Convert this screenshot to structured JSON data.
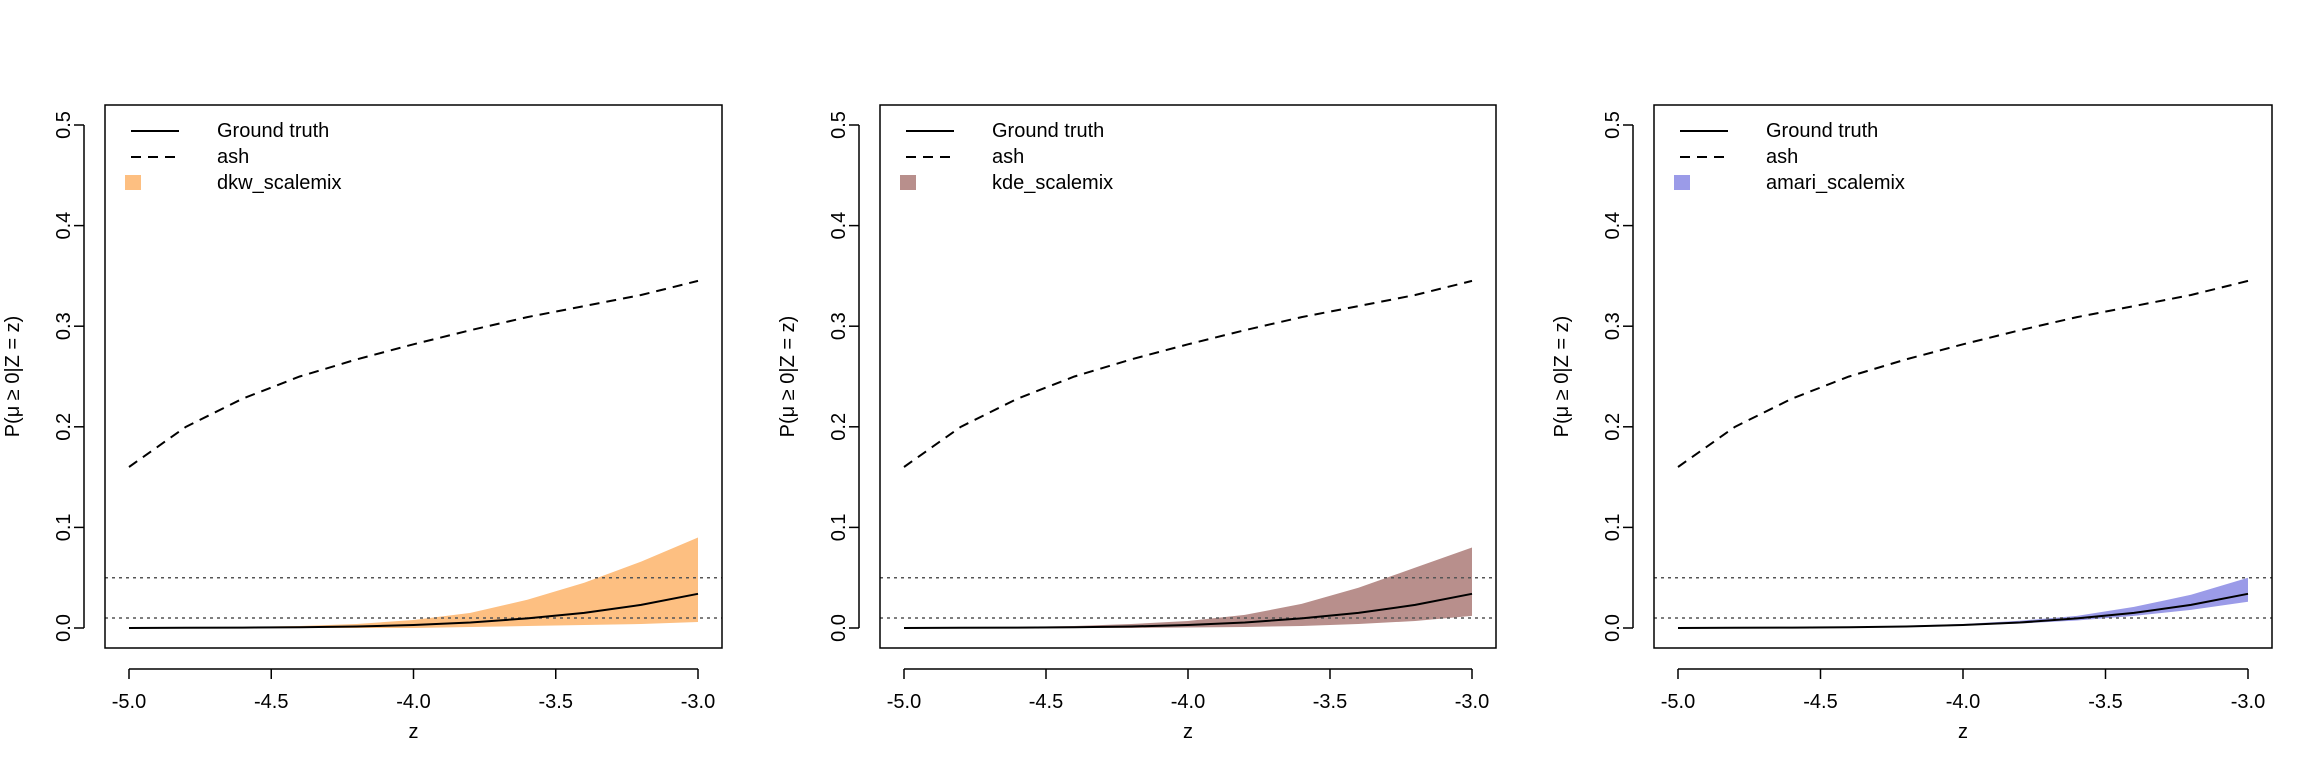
{
  "figure": {
    "y_axis_label": "P(μ ≥ 0|Z = z)",
    "x_axis_label": "z"
  },
  "chart_data": [
    {
      "type": "line",
      "xlabel": "z",
      "ylabel": "P(μ ≥ 0|Z = z)",
      "xlim": [
        -5.0,
        -3.0
      ],
      "ylim": [
        0.0,
        0.5
      ],
      "x_ticks": [
        "-5.0",
        "-4.5",
        "-4.0",
        "-3.5",
        "-3.0"
      ],
      "y_ticks": [
        "0.0",
        "0.1",
        "0.2",
        "0.3",
        "0.4",
        "0.5"
      ],
      "reference_lines_y": [
        0.01,
        0.05
      ],
      "legend": {
        "position": "top-left",
        "entries": [
          "Ground truth",
          "ash",
          "dkw_scalemix"
        ]
      },
      "band_color": "#fdbf81",
      "x": [
        -5.0,
        -4.8,
        -4.6,
        -4.4,
        -4.2,
        -4.0,
        -3.8,
        -3.6,
        -3.4,
        -3.2,
        -3.0
      ],
      "series": [
        {
          "name": "Ground truth",
          "style": "solid",
          "values": [
            0.0,
            0.0002,
            0.0004,
            0.0008,
            0.0015,
            0.003,
            0.0055,
            0.0095,
            0.015,
            0.023,
            0.034
          ]
        },
        {
          "name": "ash",
          "style": "dashed",
          "values": [
            0.16,
            0.2,
            0.228,
            0.25,
            0.267,
            0.282,
            0.296,
            0.309,
            0.32,
            0.331,
            0.345
          ]
        },
        {
          "name": "dkw_scalemix",
          "style": "band",
          "lower": [
            0.0,
            0.0,
            0.0,
            0.0,
            0.0,
            0.0,
            0.001,
            0.002,
            0.003,
            0.004,
            0.006
          ],
          "upper": [
            0.0,
            0.0005,
            0.001,
            0.002,
            0.004,
            0.008,
            0.015,
            0.028,
            0.045,
            0.066,
            0.09
          ]
        }
      ]
    },
    {
      "type": "line",
      "xlabel": "z",
      "ylabel": "P(μ ≥ 0|Z = z)",
      "xlim": [
        -5.0,
        -3.0
      ],
      "ylim": [
        0.0,
        0.5
      ],
      "x_ticks": [
        "-5.0",
        "-4.5",
        "-4.0",
        "-3.5",
        "-3.0"
      ],
      "y_ticks": [
        "0.0",
        "0.1",
        "0.2",
        "0.3",
        "0.4",
        "0.5"
      ],
      "reference_lines_y": [
        0.01,
        0.05
      ],
      "legend": {
        "position": "top-left",
        "entries": [
          "Ground truth",
          "ash",
          "kde_scalemix"
        ]
      },
      "band_color": "#b88f8c",
      "x": [
        -5.0,
        -4.8,
        -4.6,
        -4.4,
        -4.2,
        -4.0,
        -3.8,
        -3.6,
        -3.4,
        -3.2,
        -3.0
      ],
      "series": [
        {
          "name": "Ground truth",
          "style": "solid",
          "values": [
            0.0,
            0.0002,
            0.0004,
            0.0008,
            0.0015,
            0.003,
            0.0055,
            0.0095,
            0.015,
            0.023,
            0.034
          ]
        },
        {
          "name": "ash",
          "style": "dashed",
          "values": [
            0.16,
            0.2,
            0.228,
            0.25,
            0.267,
            0.282,
            0.296,
            0.309,
            0.32,
            0.331,
            0.345
          ]
        },
        {
          "name": "kde_scalemix",
          "style": "band",
          "lower": [
            0.0,
            0.0,
            0.0,
            0.0,
            0.0,
            0.0005,
            0.001,
            0.002,
            0.004,
            0.007,
            0.012
          ],
          "upper": [
            0.0,
            0.0005,
            0.001,
            0.002,
            0.004,
            0.007,
            0.013,
            0.024,
            0.04,
            0.06,
            0.08
          ]
        }
      ]
    },
    {
      "type": "line",
      "xlabel": "z",
      "ylabel": "P(μ ≥ 0|Z = z)",
      "xlim": [
        -5.0,
        -3.0
      ],
      "ylim": [
        0.0,
        0.5
      ],
      "x_ticks": [
        "-5.0",
        "-4.5",
        "-4.0",
        "-3.5",
        "-3.0"
      ],
      "y_ticks": [
        "0.0",
        "0.1",
        "0.2",
        "0.3",
        "0.4",
        "0.5"
      ],
      "reference_lines_y": [
        0.01,
        0.05
      ],
      "legend": {
        "position": "top-left",
        "entries": [
          "Ground truth",
          "ash",
          "amari_scalemix"
        ]
      },
      "band_color": "#9b9be8",
      "x": [
        -5.0,
        -4.8,
        -4.6,
        -4.4,
        -4.2,
        -4.0,
        -3.8,
        -3.6,
        -3.4,
        -3.2,
        -3.0
      ],
      "series": [
        {
          "name": "Ground truth",
          "style": "solid",
          "values": [
            0.0,
            0.0002,
            0.0004,
            0.0008,
            0.0015,
            0.003,
            0.0055,
            0.0095,
            0.015,
            0.023,
            0.034
          ]
        },
        {
          "name": "ash",
          "style": "dashed",
          "values": [
            0.16,
            0.2,
            0.228,
            0.25,
            0.267,
            0.282,
            0.296,
            0.309,
            0.32,
            0.331,
            0.345
          ]
        },
        {
          "name": "amari_scalemix",
          "style": "band",
          "lower": [
            0.0,
            0.0002,
            0.0004,
            0.0008,
            0.0014,
            0.0025,
            0.0045,
            0.0075,
            0.012,
            0.018,
            0.026
          ],
          "upper": [
            0.0,
            0.0003,
            0.0006,
            0.0012,
            0.0022,
            0.004,
            0.0072,
            0.012,
            0.021,
            0.033,
            0.05
          ]
        }
      ]
    }
  ]
}
